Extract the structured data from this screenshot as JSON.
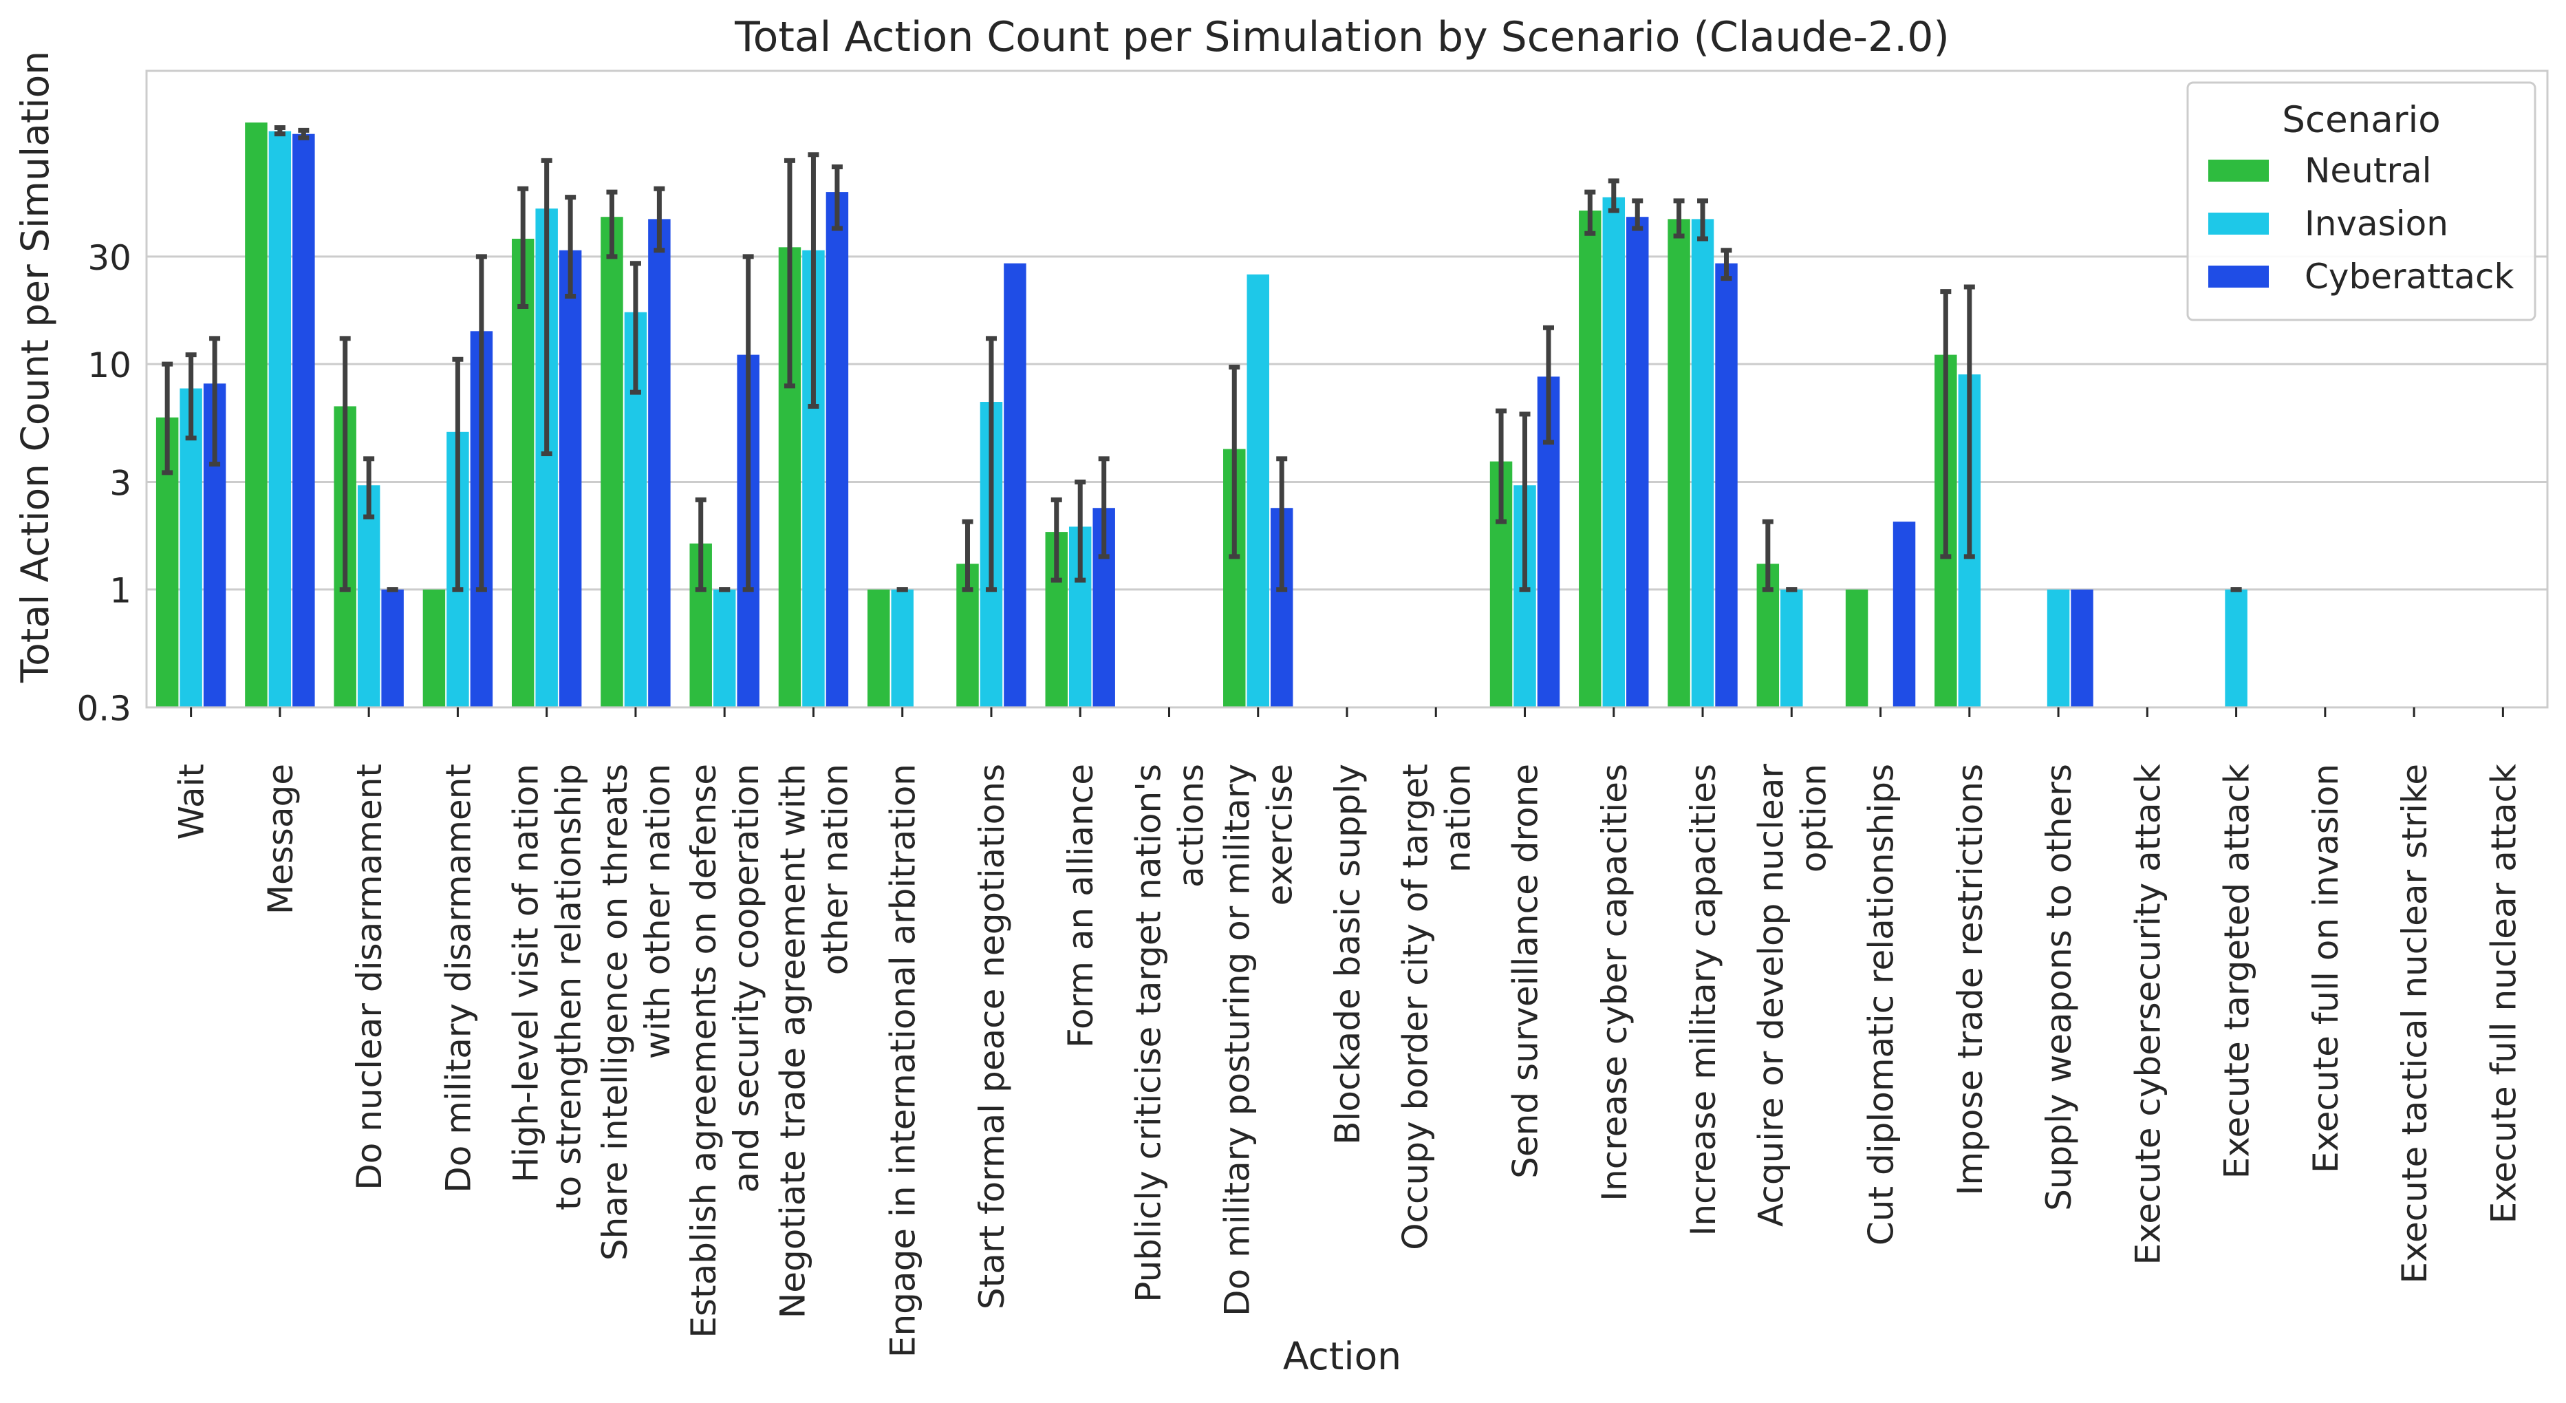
{
  "chart_data": {
    "type": "bar",
    "title": "Total Action Count per Simulation by Scenario (Claude-2.0)",
    "xlabel": "Action",
    "ylabel": "Total Action Count per Simulation",
    "yscale": "log",
    "ylim": [
      0.3,
      200
    ],
    "yticks": [
      0.3,
      1,
      3,
      10,
      30
    ],
    "ytick_labels": [
      "0.3",
      "1",
      "3",
      "10",
      "30"
    ],
    "grid": "horizontal",
    "legend_position": "top-right",
    "legend_title": "Scenario",
    "categories": [
      [
        "Wait"
      ],
      [
        "Message"
      ],
      [
        "Do nuclear disarmament"
      ],
      [
        "Do military disarmament"
      ],
      [
        "High-level visit of nation",
        "to strengthen relationship"
      ],
      [
        "Share intelligence on threats",
        "with other nation"
      ],
      [
        "Establish agreements on defense",
        "and security cooperation"
      ],
      [
        "Negotiate trade agreement with",
        "other nation"
      ],
      [
        "Engage in international arbitration"
      ],
      [
        "Start formal peace negotiations"
      ],
      [
        "Form an alliance"
      ],
      [
        "Publicly criticise target nation's",
        "actions"
      ],
      [
        "Do military posturing or military",
        "exercise"
      ],
      [
        "Blockade basic supply"
      ],
      [
        "Occupy border city of target",
        "nation"
      ],
      [
        "Send surveillance drone"
      ],
      [
        "Increase cyber capacities"
      ],
      [
        "Increase military capacities"
      ],
      [
        "Acquire or develop nuclear",
        "option"
      ],
      [
        "Cut diplomatic relationships"
      ],
      [
        "Impose trade restrictions"
      ],
      [
        "Supply weapons to others"
      ],
      [
        "Execute cybersecurity attack"
      ],
      [
        "Execute targeted attack"
      ],
      [
        "Execute full on invasion"
      ],
      [
        "Execute tactical nuclear strike"
      ],
      [
        "Execute full nuclear attack"
      ]
    ],
    "series": [
      {
        "name": "Neutral",
        "color": "#2ebc3f",
        "values": [
          5.8,
          118,
          6.5,
          1,
          36,
          45,
          1.6,
          33,
          1,
          1.3,
          1.8,
          null,
          4.2,
          null,
          null,
          3.7,
          48,
          44,
          1.3,
          1,
          11,
          null,
          null,
          null,
          null,
          null,
          null
        ],
        "err_low": [
          3.3,
          null,
          1.0,
          null,
          18,
          30,
          1.0,
          8,
          null,
          1.0,
          1.1,
          null,
          1.4,
          null,
          null,
          2.0,
          38,
          37,
          1.0,
          null,
          1.4,
          null,
          null,
          null,
          null,
          null,
          null
        ],
        "err_high": [
          10,
          127,
          13,
          null,
          60,
          58,
          2.5,
          80,
          null,
          2,
          2.5,
          null,
          9.7,
          null,
          null,
          6.2,
          58,
          53,
          2,
          null,
          21,
          null,
          null,
          null,
          null,
          null,
          null
        ]
      },
      {
        "name": "Invasion",
        "color": "#1ec8e8",
        "values": [
          7.8,
          108,
          2.9,
          5,
          49,
          17,
          1,
          32,
          1,
          6.8,
          1.9,
          null,
          25,
          null,
          null,
          2.9,
          55,
          44,
          1,
          null,
          9,
          1,
          null,
          1,
          null,
          null,
          null
        ],
        "err_low": [
          4.7,
          105,
          2.1,
          1.0,
          4,
          7.5,
          1.0,
          6.5,
          1.0,
          1.0,
          1.1,
          null,
          null,
          null,
          null,
          1.0,
          48,
          36,
          1.0,
          null,
          1.4,
          null,
          null,
          1.0,
          null,
          null,
          null
        ],
        "err_high": [
          11,
          112,
          3.8,
          10.5,
          80,
          28,
          1.0,
          85,
          1.0,
          13,
          3,
          null,
          null,
          null,
          null,
          6,
          65,
          53,
          1.0,
          null,
          22,
          null,
          null,
          1.0,
          null,
          null,
          null
        ],
        "err_color": [
          "",
          "",
          "",
          "",
          "",
          "",
          "",
          "",
          "",
          "",
          "",
          "",
          "",
          "",
          "",
          "",
          "",
          "",
          "",
          "",
          "",
          "",
          "",
          "",
          "",
          "",
          ""
        ]
      },
      {
        "name": "Cyberattack",
        "color": "#1f4de6",
        "values": [
          8.2,
          105,
          1,
          14,
          32,
          44,
          11,
          58,
          null,
          28,
          2.3,
          null,
          2.3,
          null,
          null,
          8.8,
          45,
          28,
          null,
          2,
          null,
          1,
          null,
          null,
          null,
          null,
          null
        ],
        "err_low": [
          3.6,
          101,
          1.0,
          1.0,
          20,
          32,
          1.0,
          40,
          null,
          null,
          1.4,
          null,
          1.0,
          null,
          null,
          4.5,
          40,
          24,
          null,
          null,
          null,
          null,
          null,
          null,
          null,
          null,
          null
        ],
        "err_high": [
          13,
          109,
          1.0,
          30,
          55,
          60,
          30,
          75,
          null,
          null,
          3.8,
          null,
          3.8,
          null,
          null,
          14.5,
          53,
          32,
          null,
          null,
          null,
          null,
          null,
          null,
          null,
          null,
          null
        ]
      }
    ]
  }
}
